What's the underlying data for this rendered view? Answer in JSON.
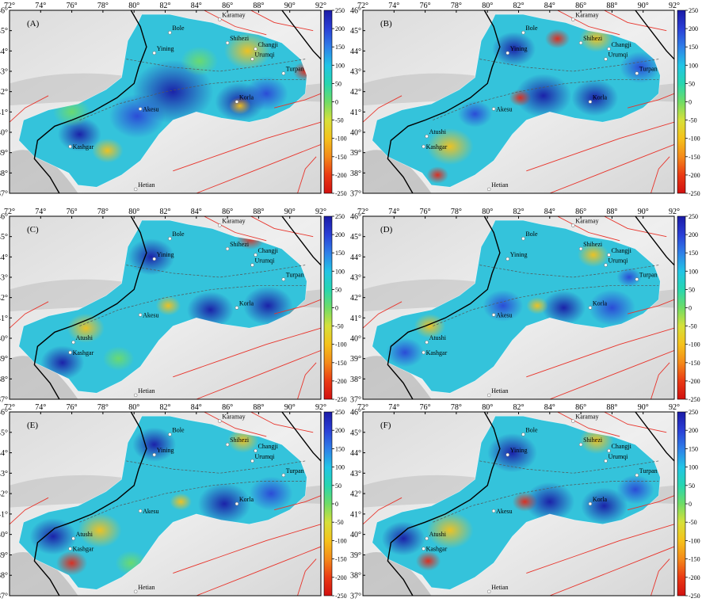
{
  "panels": [
    {
      "label": "(A)"
    },
    {
      "label": "(B)"
    },
    {
      "label": "(C)"
    },
    {
      "label": "(D)"
    },
    {
      "label": "(E)"
    },
    {
      "label": "(F)"
    }
  ],
  "axes": {
    "lon_ticks": [
      "72°",
      "74°",
      "76°",
      "78°",
      "80°",
      "82°",
      "84°",
      "86°",
      "88°",
      "90°",
      "92°"
    ],
    "lat_ticks": [
      "46°",
      "45°",
      "44°",
      "43°",
      "42°",
      "41°",
      "40°",
      "39°",
      "38°",
      "37°"
    ]
  },
  "colorbar": {
    "ticks": [
      "250",
      "200",
      "150",
      "100",
      "50",
      "0",
      "-50",
      "-100",
      "-150",
      "-200",
      "-250"
    ],
    "colors": [
      "#1a1aa6",
      "#2a3fd6",
      "#2f7fe8",
      "#22c4e6",
      "#27d6b0",
      "#6fdc66",
      "#d6e03a",
      "#f5c21b",
      "#f48a1a",
      "#ea3a14",
      "#d11010"
    ]
  },
  "places": [
    {
      "name": "Karamay",
      "lon": 85.5,
      "lat": 45.55
    },
    {
      "name": "Bole",
      "lon": 82.3,
      "lat": 44.9
    },
    {
      "name": "Shihezi",
      "lon": 86.0,
      "lat": 44.4
    },
    {
      "name": "Changji",
      "lon": 87.8,
      "lat": 44.1
    },
    {
      "name": "Yining",
      "lon": 81.3,
      "lat": 43.9
    },
    {
      "name": "Urumqi",
      "lon": 87.6,
      "lat": 43.6
    },
    {
      "name": "Turpan",
      "lon": 89.6,
      "lat": 42.9
    },
    {
      "name": "Korla",
      "lon": 86.6,
      "lat": 41.5
    },
    {
      "name": "Akesu",
      "lon": 80.4,
      "lat": 41.15
    },
    {
      "name": "Atushi",
      "lon": 76.1,
      "lat": 39.8
    },
    {
      "name": "Kashgar",
      "lon": 75.9,
      "lat": 39.3
    },
    {
      "name": "Hetian",
      "lon": 80.1,
      "lat": 37.2
    }
  ],
  "panel_places": [
    [
      "Karamay",
      "Bole",
      "Shihezi",
      "Changji",
      "Yining",
      "Urumqi",
      "Turpan",
      "Korla",
      "Akesu",
      "Kashgar",
      "Hetian"
    ],
    [
      "Karamay",
      "Bole",
      "Shihezi",
      "Changji",
      "Yining",
      "Urumqi",
      "Turpan",
      "Korla",
      "Akesu",
      "Atushi",
      "Kashgar",
      "Hetian"
    ],
    [
      "Karamay",
      "Bole",
      "Shihezi",
      "Changji",
      "Yining",
      "Urumqi",
      "Turpan",
      "Korla",
      "Akesu",
      "Atushi",
      "Kashgar",
      "Hetian"
    ],
    [
      "Karamay",
      "Bole",
      "Shihezi",
      "Changji",
      "Yining",
      "Urumqi",
      "Turpan",
      "Korla",
      "Akesu",
      "Atushi",
      "Kashgar",
      "Hetian"
    ],
    [
      "Karamay",
      "Bole",
      "Shihezi",
      "Changji",
      "Yining",
      "Urumqi",
      "Turpan",
      "Korla",
      "Akesu",
      "Atushi",
      "Kashgar",
      "Hetian"
    ],
    [
      "Karamay",
      "Bole",
      "Shihezi",
      "Changji",
      "Yining",
      "Urumqi",
      "Turpan",
      "Korla",
      "Akesu",
      "Atushi",
      "Kashgar",
      "Hetian"
    ]
  ]
}
